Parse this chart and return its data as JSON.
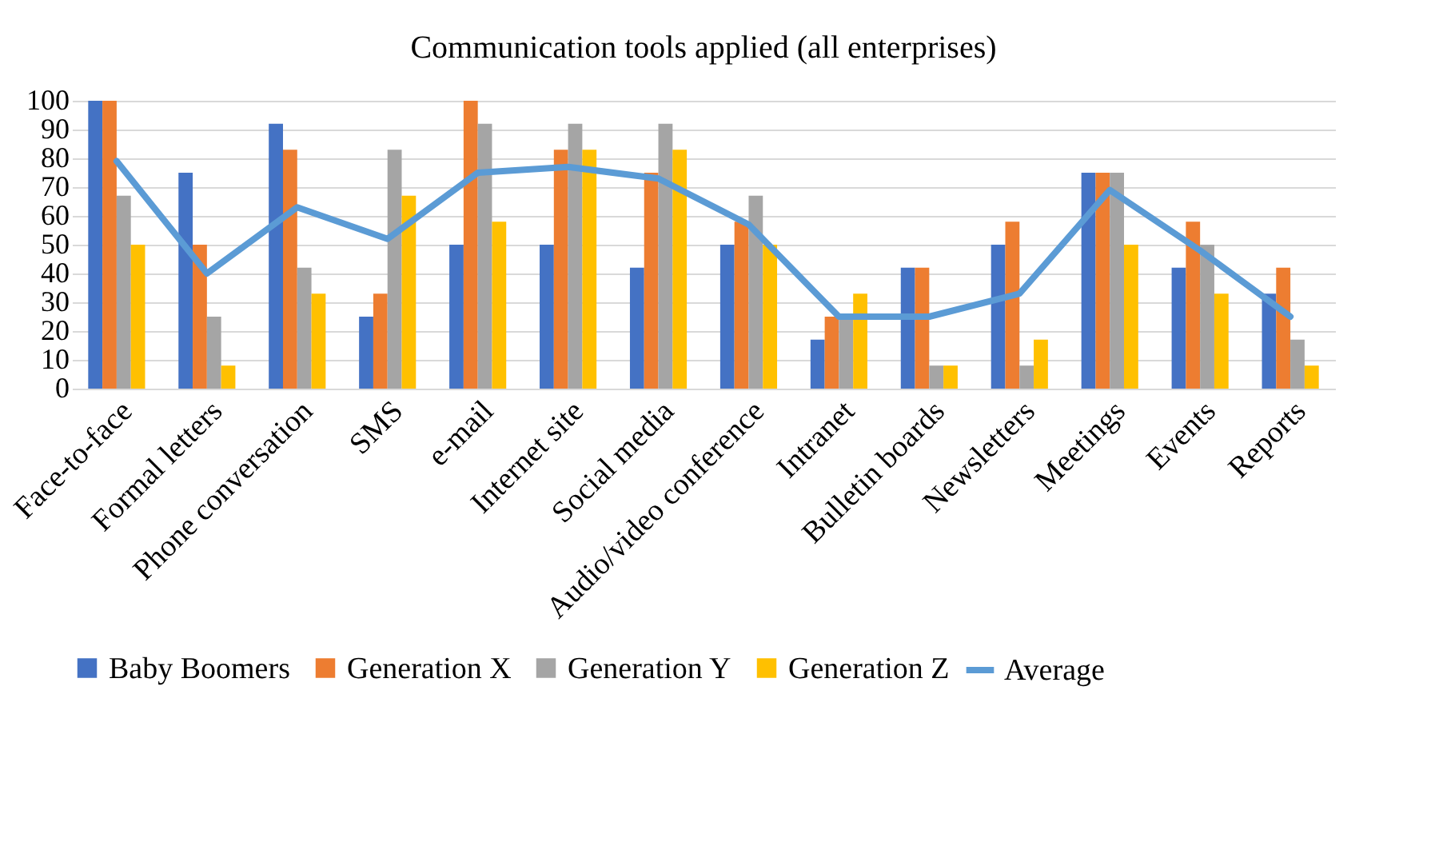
{
  "chart_data": {
    "type": "bar",
    "title": "Communication tools applied (all enterprises)",
    "categories": [
      "Face-to-face",
      "Formal letters",
      "Phone conversation",
      "SMS",
      "e-mail",
      "Internet site",
      "Social media",
      "Audio/video conference",
      "Intranet",
      "Bulletin boards",
      "Newsletters",
      "Meetings",
      "Events",
      "Reports"
    ],
    "series": [
      {
        "name": "Baby Boomers",
        "color": "#4472c4",
        "values": [
          100,
          75,
          92,
          25,
          50,
          50,
          42,
          50,
          17,
          42,
          50,
          75,
          42,
          33
        ]
      },
      {
        "name": "Generation X",
        "color": "#ed7d31",
        "values": [
          100,
          50,
          83,
          33,
          100,
          83,
          75,
          58,
          25,
          42,
          58,
          75,
          58,
          42
        ]
      },
      {
        "name": "Generation Y",
        "color": "#a5a5a5",
        "values": [
          67,
          25,
          42,
          83,
          92,
          92,
          92,
          67,
          25,
          8,
          8,
          75,
          50,
          17
        ]
      },
      {
        "name": "Generation Z",
        "color": "#ffc000",
        "values": [
          50,
          8,
          33,
          67,
          58,
          83,
          83,
          50,
          33,
          8,
          17,
          50,
          33,
          8
        ]
      },
      {
        "name": "Average",
        "color": "#5b9bd5",
        "type": "line",
        "values": [
          79,
          40,
          63,
          52,
          75,
          77,
          73,
          57,
          25,
          25,
          33,
          69,
          48,
          25
        ]
      }
    ],
    "ylim": [
      0,
      100
    ],
    "yticks": [
      0,
      10,
      20,
      30,
      40,
      50,
      60,
      70,
      80,
      90,
      100
    ],
    "grid": "y",
    "legend": "bottom"
  }
}
